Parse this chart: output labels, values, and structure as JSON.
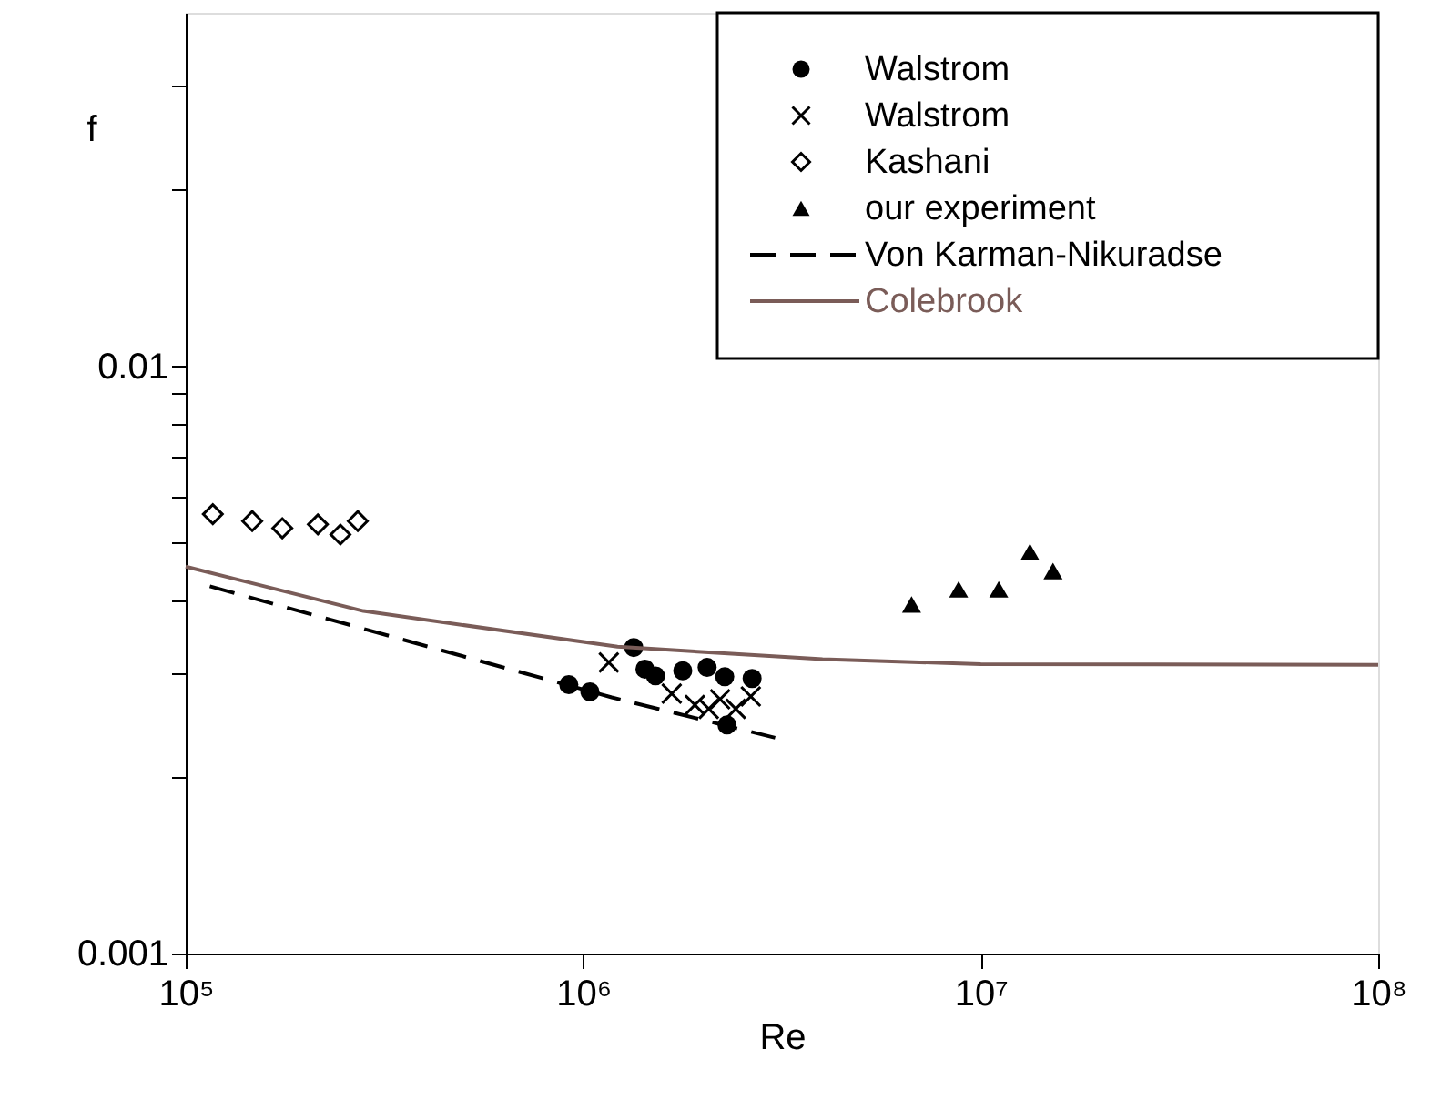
{
  "chart_data": {
    "type": "scatter",
    "xlabel": "Re",
    "ylabel": "f",
    "log": "xy",
    "grid": false,
    "legend": "top right",
    "xlim": [
      100000,
      100000000
    ],
    "xticks": [
      {
        "value": 100000,
        "label": "10⁵"
      },
      {
        "value": 1000000,
        "label": "10⁶"
      },
      {
        "value": 10000000,
        "label": "10⁷"
      },
      {
        "value": 100000000,
        "label": "10⁸"
      }
    ],
    "ylim": [
      0.001,
      0.04
    ],
    "yticks": [
      0.001,
      {
        "value": 0.002,
        "label": null
      },
      {
        "value": 0.003,
        "label": null
      },
      {
        "value": 0.004,
        "label": null
      },
      {
        "value": 0.005,
        "label": null
      },
      {
        "value": 0.006,
        "label": null
      },
      {
        "value": 0.007,
        "label": null
      },
      {
        "value": 0.008,
        "label": null
      },
      {
        "value": 0.009,
        "label": null
      },
      0.01,
      {
        "value": 0.02,
        "label": null
      },
      {
        "value": 0.03,
        "label": null
      }
    ],
    "series": [
      {
        "name": "Walstrom",
        "marker": "circle",
        "color": "#000000",
        "x": [
          920000,
          1040000,
          1340000,
          1430000,
          1520000,
          1780000,
          2050000,
          2270000,
          2660000,
          2300000
        ],
        "values": [
          0.00287,
          0.00279,
          0.00332,
          0.00305,
          0.00297,
          0.00303,
          0.00307,
          0.00296,
          0.00294,
          0.00245
        ]
      },
      {
        "name": "Walstrom",
        "marker": "cross",
        "color": "#000000",
        "x": [
          1160000,
          1670000,
          1910000,
          2070000,
          2210000,
          2420000,
          2640000
        ],
        "values": [
          0.00313,
          0.00277,
          0.00265,
          0.00261,
          0.00271,
          0.00261,
          0.00274
        ]
      },
      {
        "name": "Kashani",
        "marker": "diamond",
        "color": "#000000",
        "x": [
          117000,
          147000,
          175000,
          215000,
          245000,
          271000
        ],
        "values": [
          0.0056,
          0.00545,
          0.0053,
          0.00538,
          0.00517,
          0.00545
        ]
      },
      {
        "name": "our experiment",
        "marker": "triangle",
        "color": "#000000",
        "x": [
          6700000,
          8800000,
          11100000,
          13300000,
          15200000
        ],
        "values": [
          0.00393,
          0.00417,
          0.00417,
          0.00483,
          0.00448
        ]
      },
      {
        "name": "Von Karman-Nikuradse",
        "type": "line",
        "line_style": "dashed",
        "color": "#000000",
        "x": [
          115000,
          1180000,
          3040000
        ],
        "values": [
          0.00422,
          0.00273,
          0.00233
        ]
      },
      {
        "name": "Colebrook",
        "type": "line",
        "line_style": "solid",
        "color": "#7a5c58",
        "x": [
          100000,
          280000,
          1220000,
          4000000,
          10000000,
          100000000
        ],
        "values": [
          0.00456,
          0.00383,
          0.00333,
          0.00317,
          0.00311,
          0.0031
        ]
      }
    ]
  }
}
